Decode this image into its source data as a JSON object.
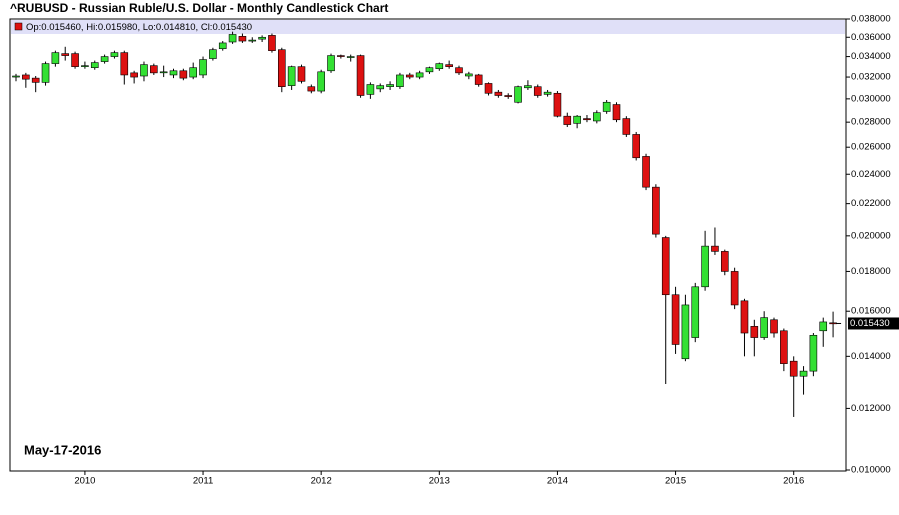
{
  "chart_data": {
    "type": "candlestick",
    "title": "^RUBUSD - Russian Ruble/U.S. Dollar - Monthly Candlestick Chart",
    "ohlc_legend": "Op:0.015460, Hi:0.015980, Lo:0.014810, Cl:0.015430",
    "annotation": "May-17-2016",
    "last_price_label": "0.015430",
    "up_color": "#33e033",
    "down_color": "#dd1111",
    "log_scale": true,
    "grid": false,
    "categories": [
      null,
      null,
      null,
      null,
      null,
      null,
      null,
      "2010",
      null,
      null,
      null,
      null,
      null,
      null,
      null,
      null,
      null,
      null,
      null,
      "2011",
      null,
      null,
      null,
      null,
      null,
      null,
      null,
      null,
      null,
      null,
      null,
      "2012",
      null,
      null,
      null,
      null,
      null,
      null,
      null,
      null,
      null,
      null,
      null,
      "2013",
      null,
      null,
      null,
      null,
      null,
      null,
      null,
      null,
      null,
      null,
      null,
      "2014",
      null,
      null,
      null,
      null,
      null,
      null,
      null,
      null,
      null,
      null,
      null,
      "2015",
      null,
      null,
      null,
      null,
      null,
      null,
      null,
      null,
      null,
      null,
      null,
      "2016",
      null,
      null,
      null,
      null
    ],
    "open": [
      0.032,
      0.0322,
      0.0319,
      0.0315,
      0.0333,
      0.0343,
      0.0343,
      0.0331,
      0.0329,
      0.0335,
      0.034,
      0.0344,
      0.0324,
      0.0321,
      0.0331,
      0.0325,
      0.0322,
      0.0326,
      0.032,
      0.0322,
      0.0338,
      0.0348,
      0.0355,
      0.0361,
      0.0357,
      0.0358,
      0.0362,
      0.0347,
      0.0312,
      0.033,
      0.0311,
      0.0307,
      0.0326,
      0.0341,
      0.034,
      0.0341,
      0.0304,
      0.0309,
      0.0311,
      0.0311,
      0.0322,
      0.032,
      0.0325,
      0.0328,
      0.0332,
      0.0329,
      0.0321,
      0.0322,
      0.0314,
      0.0306,
      0.0303,
      0.0297,
      0.031,
      0.0311,
      0.0304,
      0.0305,
      0.0285,
      0.0279,
      0.0283,
      0.0281,
      0.0289,
      0.0295,
      0.0283,
      0.027,
      0.0253,
      0.0231,
      0.0199,
      0.0168,
      0.0139,
      0.0148,
      0.0172,
      0.0194,
      0.0191,
      0.018,
      0.0165,
      0.0153,
      0.0148,
      0.0156,
      0.0151,
      0.0138,
      0.0132,
      0.0134,
      0.0151,
      0.01546
    ],
    "high": [
      0.0323,
      0.0324,
      0.0321,
      0.0335,
      0.0346,
      0.035,
      0.0345,
      0.0335,
      0.0336,
      0.0342,
      0.0346,
      0.0346,
      0.0326,
      0.0335,
      0.0333,
      0.0331,
      0.0328,
      0.0328,
      0.0334,
      0.034,
      0.0349,
      0.0356,
      0.0366,
      0.0364,
      0.036,
      0.0362,
      0.0364,
      0.0349,
      0.0331,
      0.0332,
      0.0313,
      0.0327,
      0.0343,
      0.0342,
      0.0342,
      0.0342,
      0.0315,
      0.0314,
      0.0316,
      0.0324,
      0.0324,
      0.0326,
      0.033,
      0.0334,
      0.0336,
      0.0331,
      0.0325,
      0.0323,
      0.0315,
      0.0308,
      0.0305,
      0.0312,
      0.0317,
      0.0313,
      0.0308,
      0.0307,
      0.0288,
      0.0286,
      0.0286,
      0.029,
      0.0299,
      0.0297,
      0.0285,
      0.0272,
      0.0255,
      0.0233,
      0.02,
      0.0172,
      0.0168,
      0.0174,
      0.0203,
      0.0205,
      0.0192,
      0.0182,
      0.0166,
      0.0156,
      0.016,
      0.0157,
      0.0152,
      0.014,
      0.0136,
      0.015,
      0.0157,
      0.01598
    ],
    "low": [
      0.0316,
      0.031,
      0.0306,
      0.0312,
      0.033,
      0.0336,
      0.0328,
      0.0328,
      0.0327,
      0.0333,
      0.0338,
      0.0313,
      0.0314,
      0.0316,
      0.0322,
      0.032,
      0.0319,
      0.0317,
      0.0318,
      0.0319,
      0.0336,
      0.0346,
      0.0353,
      0.0354,
      0.0354,
      0.0355,
      0.0344,
      0.0306,
      0.0308,
      0.0314,
      0.0305,
      0.0305,
      0.0324,
      0.0338,
      0.0335,
      0.0301,
      0.03,
      0.0306,
      0.0308,
      0.0309,
      0.0318,
      0.0318,
      0.0323,
      0.0326,
      0.0328,
      0.0322,
      0.0318,
      0.0311,
      0.0303,
      0.0301,
      0.03,
      0.0296,
      0.0308,
      0.0301,
      0.0302,
      0.0284,
      0.0276,
      0.0275,
      0.028,
      0.0279,
      0.0287,
      0.028,
      0.0268,
      0.025,
      0.0229,
      0.0199,
      0.0129,
      0.0141,
      0.0138,
      0.0146,
      0.017,
      0.0189,
      0.0178,
      0.0161,
      0.014,
      0.014,
      0.0147,
      0.0148,
      0.0134,
      0.0117,
      0.0125,
      0.0132,
      0.0144,
      0.01481
    ],
    "close": [
      0.0321,
      0.0318,
      0.0315,
      0.0333,
      0.0344,
      0.0341,
      0.033,
      0.0331,
      0.0334,
      0.034,
      0.0344,
      0.0322,
      0.032,
      0.0332,
      0.0324,
      0.0325,
      0.0326,
      0.0319,
      0.0329,
      0.0337,
      0.0347,
      0.0354,
      0.0363,
      0.0356,
      0.0357,
      0.036,
      0.0346,
      0.0311,
      0.033,
      0.0316,
      0.0307,
      0.0325,
      0.0341,
      0.034,
      0.034,
      0.0303,
      0.0313,
      0.0312,
      0.0313,
      0.0322,
      0.032,
      0.0324,
      0.0329,
      0.0333,
      0.033,
      0.0324,
      0.0323,
      0.0313,
      0.0305,
      0.0303,
      0.0302,
      0.0311,
      0.0312,
      0.0303,
      0.0306,
      0.0285,
      0.0278,
      0.0285,
      0.0282,
      0.0288,
      0.0297,
      0.0282,
      0.027,
      0.0252,
      0.0231,
      0.0201,
      0.0168,
      0.0145,
      0.0163,
      0.0172,
      0.0194,
      0.0191,
      0.018,
      0.0163,
      0.015,
      0.0148,
      0.0157,
      0.015,
      0.0137,
      0.0132,
      0.0134,
      0.0149,
      0.0155,
      0.01543
    ],
    "ylim": [
      0.01,
      0.038
    ],
    "yticks": [
      {
        "value": 0.01,
        "label": "0.010000"
      },
      {
        "value": 0.012,
        "label": "0.012000"
      },
      {
        "value": 0.014,
        "label": "0.014000"
      },
      {
        "value": 0.016,
        "label": "0.016000"
      },
      {
        "value": 0.018,
        "label": "0.018000"
      },
      {
        "value": 0.02,
        "label": "0.020000"
      },
      {
        "value": 0.022,
        "label": "0.022000"
      },
      {
        "value": 0.024,
        "label": "0.024000"
      },
      {
        "value": 0.026,
        "label": "0.026000"
      },
      {
        "value": 0.028,
        "label": "0.028000"
      },
      {
        "value": 0.03,
        "label": "0.030000"
      },
      {
        "value": 0.032,
        "label": "0.032000"
      },
      {
        "value": 0.034,
        "label": "0.034000"
      },
      {
        "value": 0.036,
        "label": "0.036000"
      },
      {
        "value": 0.038,
        "label": "0.038000"
      }
    ]
  }
}
